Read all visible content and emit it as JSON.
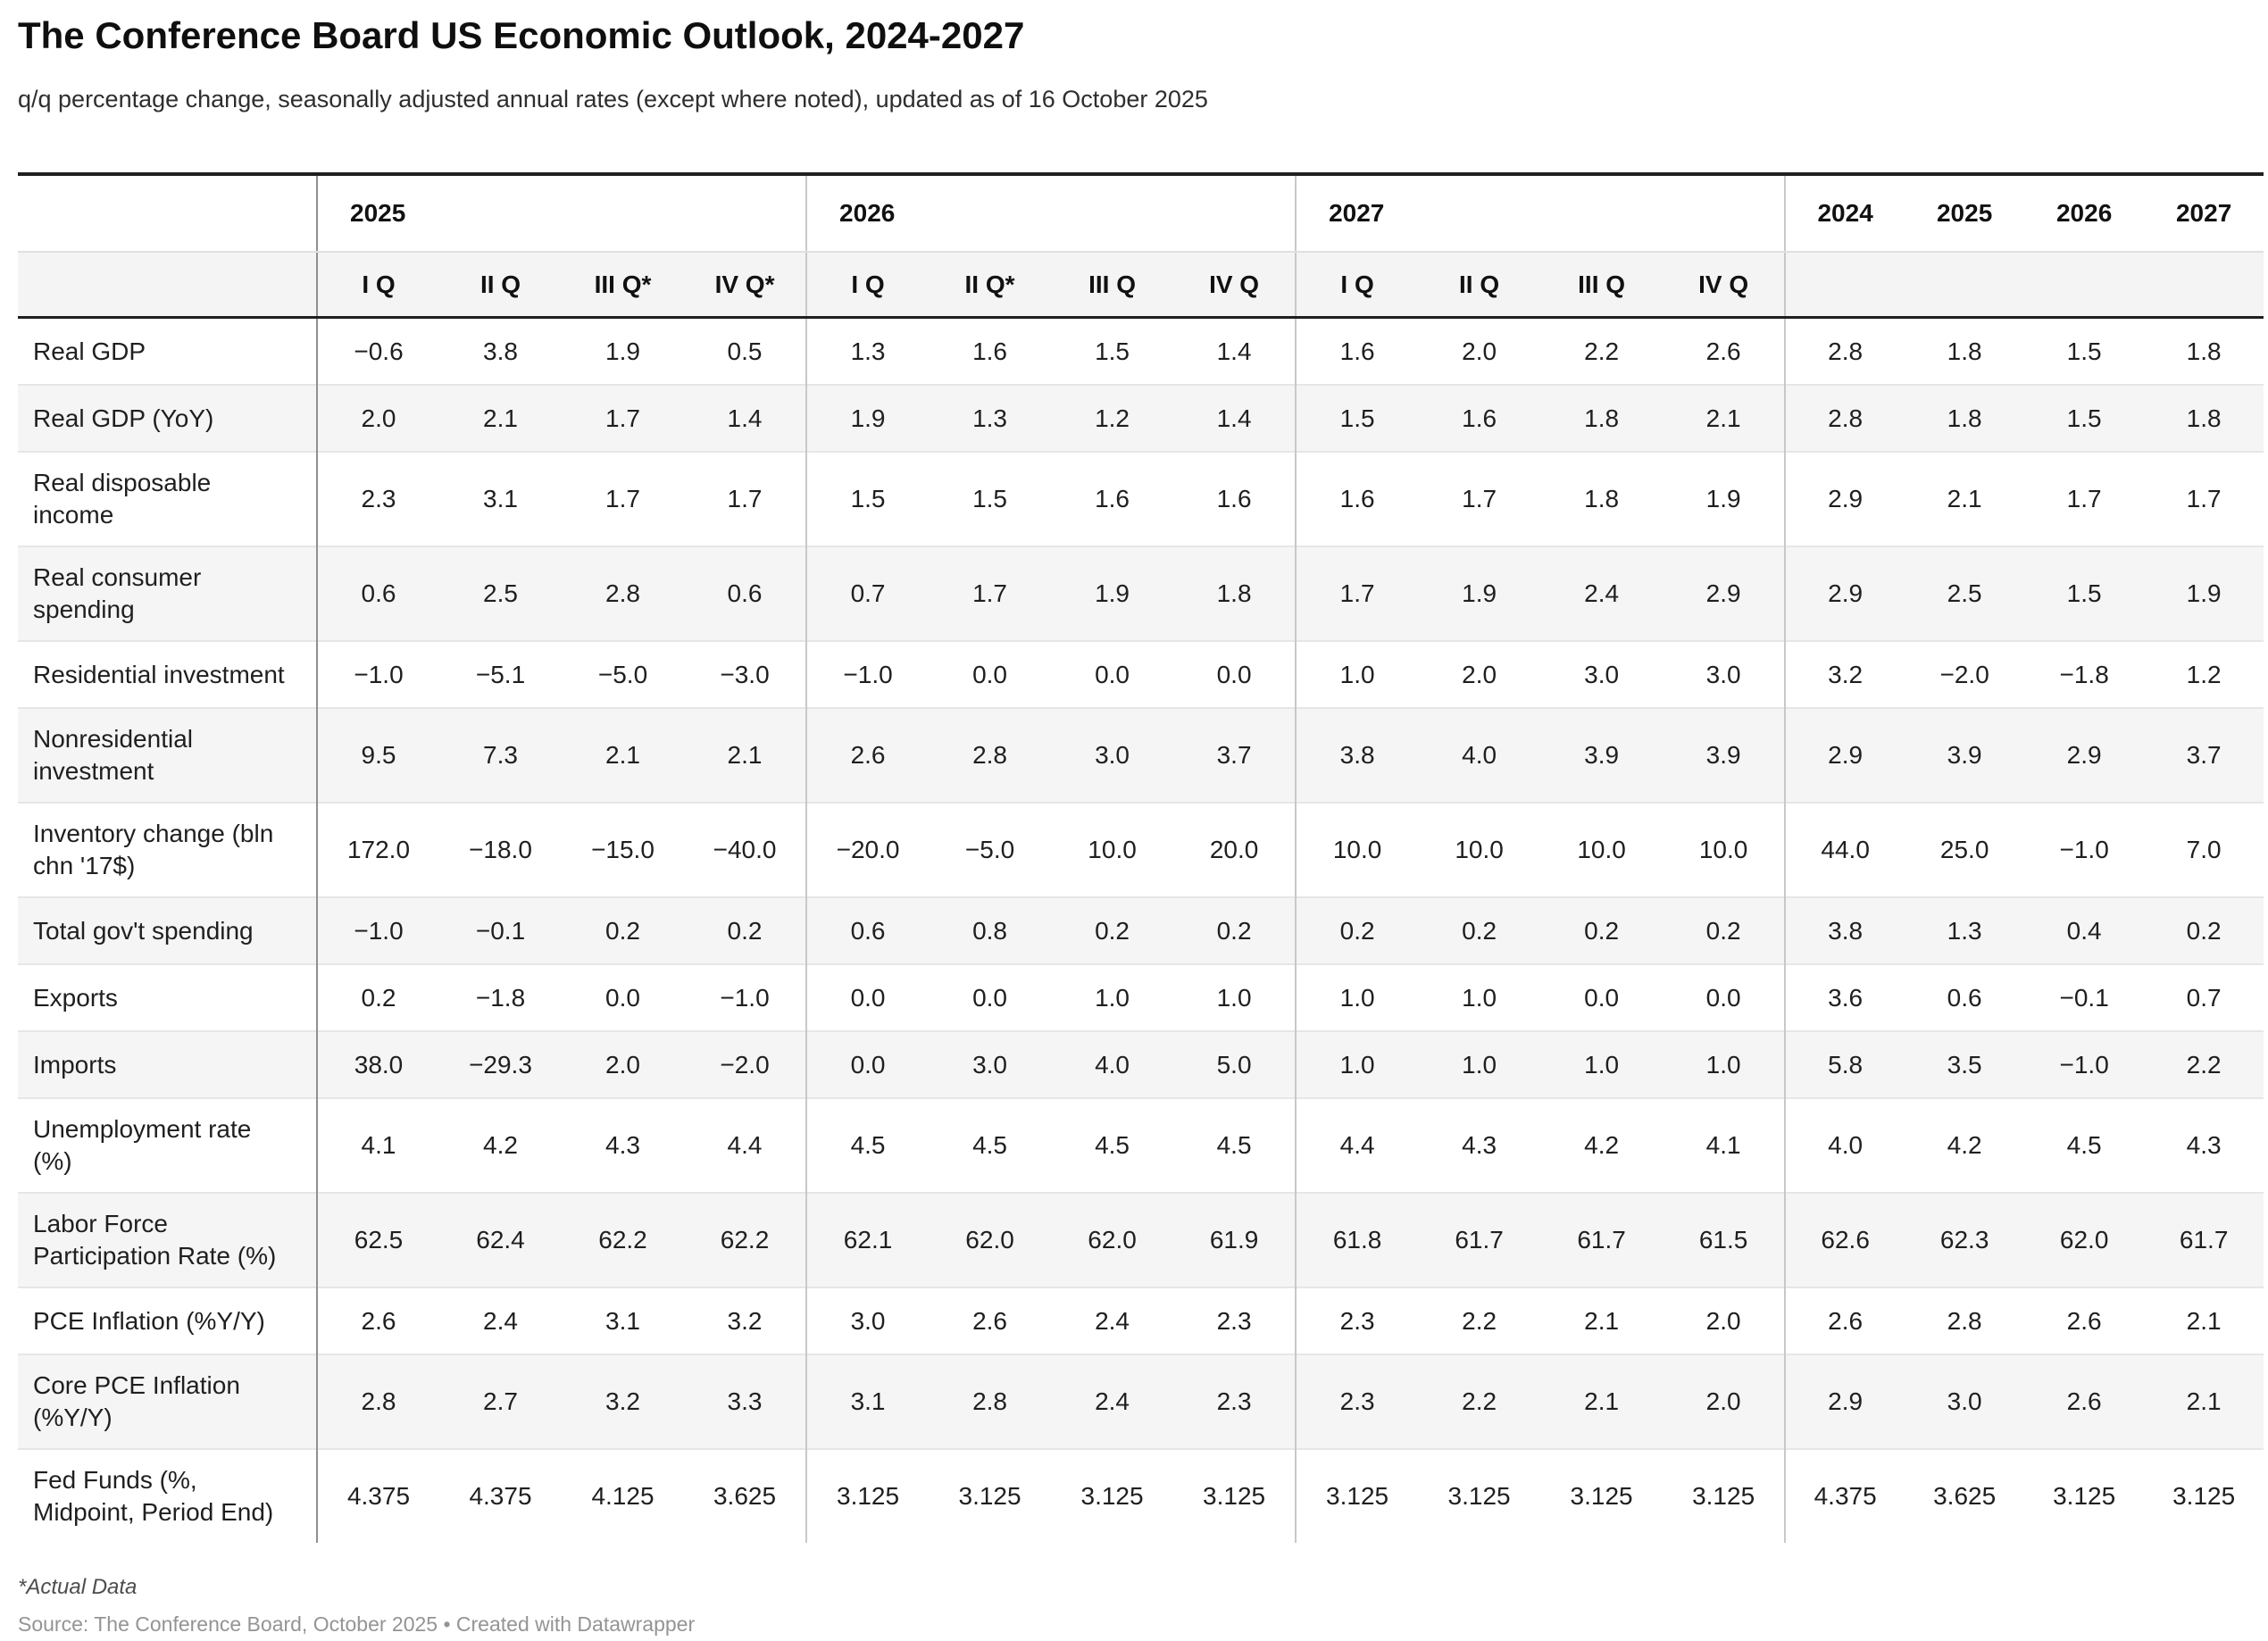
{
  "chart_data": {
    "type": "table",
    "title": "The Conference Board US Economic Outlook, 2024-2027",
    "subtitle": "q/q percentage change, seasonally adjusted annual rates (except where noted), updated as of 16 October 2025",
    "groups": [
      {
        "label": "2025",
        "quarters": [
          "I Q",
          "II Q",
          "III Q*",
          "IV Q*"
        ]
      },
      {
        "label": "2026",
        "quarters": [
          "I Q",
          "II Q*",
          "III Q",
          "IV Q"
        ]
      },
      {
        "label": "2027",
        "quarters": [
          "I Q",
          "II Q",
          "III Q",
          "IV Q"
        ]
      }
    ],
    "annual_years": [
      "2024",
      "2025",
      "2026",
      "2027"
    ],
    "rows": [
      {
        "label": "Real GDP",
        "values": [
          "−0.6",
          "3.8",
          "1.9",
          "0.5",
          "1.3",
          "1.6",
          "1.5",
          "1.4",
          "1.6",
          "2.0",
          "2.2",
          "2.6",
          "2.8",
          "1.8",
          "1.5",
          "1.8"
        ]
      },
      {
        "label": "Real GDP (YoY)",
        "values": [
          "2.0",
          "2.1",
          "1.7",
          "1.4",
          "1.9",
          "1.3",
          "1.2",
          "1.4",
          "1.5",
          "1.6",
          "1.8",
          "2.1",
          "2.8",
          "1.8",
          "1.5",
          "1.8"
        ]
      },
      {
        "label": "Real disposable income",
        "values": [
          "2.3",
          "3.1",
          "1.7",
          "1.7",
          "1.5",
          "1.5",
          "1.6",
          "1.6",
          "1.6",
          "1.7",
          "1.8",
          "1.9",
          "2.9",
          "2.1",
          "1.7",
          "1.7"
        ]
      },
      {
        "label": "Real consumer spending",
        "values": [
          "0.6",
          "2.5",
          "2.8",
          "0.6",
          "0.7",
          "1.7",
          "1.9",
          "1.8",
          "1.7",
          "1.9",
          "2.4",
          "2.9",
          "2.9",
          "2.5",
          "1.5",
          "1.9"
        ]
      },
      {
        "label": "Residential investment",
        "values": [
          "−1.0",
          "−5.1",
          "−5.0",
          "−3.0",
          "−1.0",
          "0.0",
          "0.0",
          "0.0",
          "1.0",
          "2.0",
          "3.0",
          "3.0",
          "3.2",
          "−2.0",
          "−1.8",
          "1.2"
        ]
      },
      {
        "label": "Nonresidential investment",
        "values": [
          "9.5",
          "7.3",
          "2.1",
          "2.1",
          "2.6",
          "2.8",
          "3.0",
          "3.7",
          "3.8",
          "4.0",
          "3.9",
          "3.9",
          "2.9",
          "3.9",
          "2.9",
          "3.7"
        ]
      },
      {
        "label": "Inventory change (bln chn '17$)",
        "values": [
          "172.0",
          "−18.0",
          "−15.0",
          "−40.0",
          "−20.0",
          "−5.0",
          "10.0",
          "20.0",
          "10.0",
          "10.0",
          "10.0",
          "10.0",
          "44.0",
          "25.0",
          "−1.0",
          "7.0"
        ]
      },
      {
        "label": "Total gov't spending",
        "values": [
          "−1.0",
          "−0.1",
          "0.2",
          "0.2",
          "0.6",
          "0.8",
          "0.2",
          "0.2",
          "0.2",
          "0.2",
          "0.2",
          "0.2",
          "3.8",
          "1.3",
          "0.4",
          "0.2"
        ]
      },
      {
        "label": "Exports",
        "values": [
          "0.2",
          "−1.8",
          "0.0",
          "−1.0",
          "0.0",
          "0.0",
          "1.0",
          "1.0",
          "1.0",
          "1.0",
          "0.0",
          "0.0",
          "3.6",
          "0.6",
          "−0.1",
          "0.7"
        ]
      },
      {
        "label": "Imports",
        "values": [
          "38.0",
          "−29.3",
          "2.0",
          "−2.0",
          "0.0",
          "3.0",
          "4.0",
          "5.0",
          "1.0",
          "1.0",
          "1.0",
          "1.0",
          "5.8",
          "3.5",
          "−1.0",
          "2.2"
        ]
      },
      {
        "label": "Unemployment rate (%)",
        "values": [
          "4.1",
          "4.2",
          "4.3",
          "4.4",
          "4.5",
          "4.5",
          "4.5",
          "4.5",
          "4.4",
          "4.3",
          "4.2",
          "4.1",
          "4.0",
          "4.2",
          "4.5",
          "4.3"
        ]
      },
      {
        "label": "Labor Force Participation Rate (%)",
        "values": [
          "62.5",
          "62.4",
          "62.2",
          "62.2",
          "62.1",
          "62.0",
          "62.0",
          "61.9",
          "61.8",
          "61.7",
          "61.7",
          "61.5",
          "62.6",
          "62.3",
          "62.0",
          "61.7"
        ]
      },
      {
        "label": "PCE Inflation (%Y/Y)",
        "values": [
          "2.6",
          "2.4",
          "3.1",
          "3.2",
          "3.0",
          "2.6",
          "2.4",
          "2.3",
          "2.3",
          "2.2",
          "2.1",
          "2.0",
          "2.6",
          "2.8",
          "2.6",
          "2.1"
        ]
      },
      {
        "label": "Core PCE Inflation (%Y/Y)",
        "values": [
          "2.8",
          "2.7",
          "3.2",
          "3.3",
          "3.1",
          "2.8",
          "2.4",
          "2.3",
          "2.3",
          "2.2",
          "2.1",
          "2.0",
          "2.9",
          "3.0",
          "2.6",
          "2.1"
        ]
      },
      {
        "label": "Fed Funds (%, Midpoint, Period End)",
        "values": [
          "4.375",
          "4.375",
          "4.125",
          "3.625",
          "3.125",
          "3.125",
          "3.125",
          "3.125",
          "3.125",
          "3.125",
          "3.125",
          "3.125",
          "4.375",
          "3.625",
          "3.125",
          "3.125"
        ]
      }
    ],
    "footnote": "*Actual Data",
    "source": "Source: The Conference Board, October 2025 • Created with Datawrapper"
  }
}
